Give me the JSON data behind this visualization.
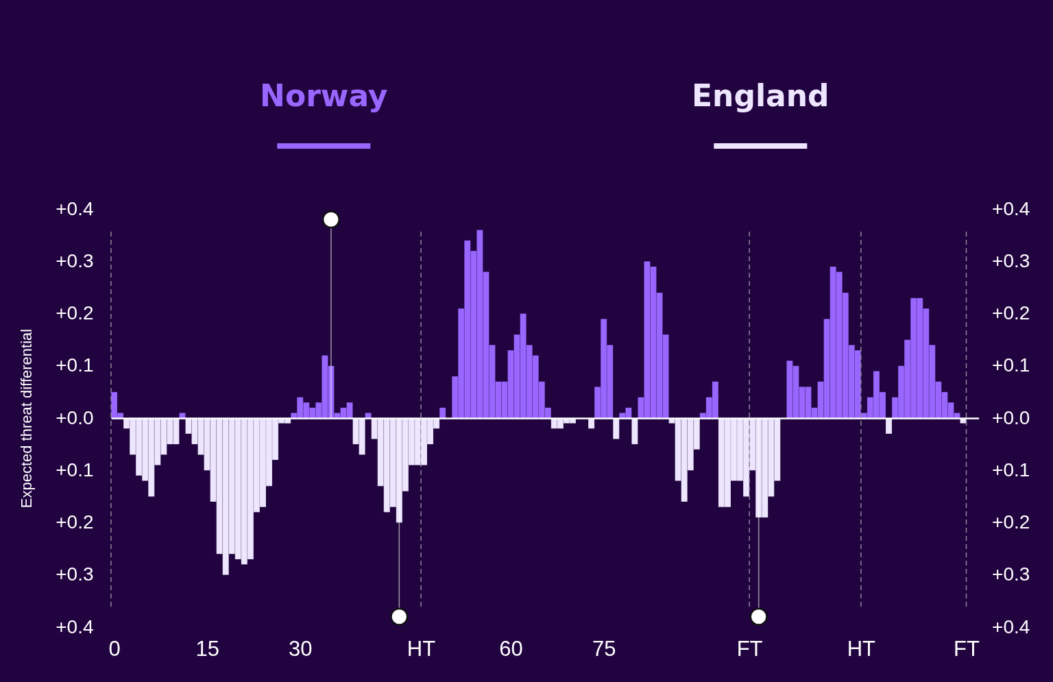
{
  "chart_data": [
    {
      "type": "bar",
      "ylabel": "Expected threat differential",
      "x": [
        0,
        1,
        2,
        3,
        4,
        5,
        6,
        7,
        8,
        9,
        10,
        11,
        12,
        13,
        14,
        15,
        16,
        17,
        18,
        19,
        20,
        21,
        22,
        23,
        24,
        25,
        26,
        27,
        28,
        29,
        30,
        31,
        32,
        33,
        34,
        35,
        36,
        37,
        38,
        39,
        40,
        41,
        42,
        43,
        44,
        45,
        46,
        47,
        48,
        49
      ],
      "series": [
        {
          "name": "Norway",
          "color": "#9966ff",
          "values": [
            0.05,
            0.01,
            null,
            null,
            null,
            null,
            null,
            null,
            null,
            null,
            null,
            0.01,
            null,
            null,
            null,
            null,
            null,
            null,
            null,
            null,
            null,
            null,
            null,
            null,
            null,
            null,
            null,
            null,
            null,
            0.01,
            0.04,
            0.03,
            0.02,
            0.03,
            0.12,
            0.1,
            0.01,
            0.02,
            0.03,
            null,
            null,
            0.01,
            null,
            null,
            null,
            null,
            null,
            null,
            null,
            null
          ]
        },
        {
          "name": "England",
          "color": "#eee6ff",
          "values": [
            null,
            null,
            -0.02,
            -0.07,
            -0.11,
            -0.12,
            -0.15,
            -0.09,
            -0.07,
            -0.05,
            -0.05,
            null,
            -0.03,
            -0.05,
            -0.07,
            -0.1,
            -0.16,
            -0.26,
            -0.3,
            -0.26,
            -0.27,
            -0.28,
            -0.27,
            -0.18,
            -0.17,
            -0.13,
            -0.08,
            -0.01,
            -0.01,
            null,
            null,
            null,
            null,
            null,
            null,
            null,
            null,
            null,
            null,
            -0.05,
            -0.07,
            null,
            -0.04,
            -0.13,
            -0.18,
            -0.17,
            -0.2,
            -0.14,
            -0.09,
            -0.09
          ]
        },
        {
          "type": "lollipop",
          "color": "#ffffff",
          "x": [
            35,
            46
          ],
          "values": [
            0.38,
            -0.38
          ]
        }
      ],
      "marker": "circle",
      "xlim": [
        -0.5,
        49.5
      ],
      "xticks": [
        0,
        15,
        30,
        {
          "value": 49.5,
          "label": "HT"
        }
      ],
      "ylim": [
        -0.4,
        0.4
      ],
      "yticks": [
        {
          "value": -0.4,
          "label": "+0.4"
        },
        {
          "value": -0.3,
          "label": "+0.3"
        },
        {
          "value": -0.2,
          "label": "+0.2"
        },
        {
          "value": -0.1,
          "label": "+0.1"
        },
        {
          "value": 0,
          "label": "+0.0"
        },
        {
          "value": 0.1,
          "label": "+0.1"
        },
        {
          "value": 0.2,
          "label": "+0.2"
        },
        {
          "value": 0.3,
          "label": "+0.3"
        },
        {
          "value": 0.4,
          "label": "+0.4"
        }
      ],
      "ref_lines": [
        {
          "axis": "x",
          "value": -0.5,
          "color": "#8f879c",
          "line_style": "dashed"
        },
        {
          "axis": "x",
          "value": 49.5,
          "color": "#8f879c",
          "line_style": "dashed"
        }
      ],
      "legend": "top"
    },
    {
      "type": "bar",
      "x": [
        46,
        47,
        48,
        49,
        50,
        51,
        52,
        53,
        54,
        55,
        56,
        57,
        58,
        59,
        60,
        61,
        62,
        63,
        64,
        65,
        66,
        67,
        68,
        69,
        70,
        71,
        72,
        73,
        74,
        75,
        76,
        77,
        78,
        79,
        80,
        81,
        82,
        83,
        84,
        85,
        86,
        87,
        88,
        89,
        90,
        91,
        92,
        93,
        94,
        95,
        96,
        97,
        98,
        99,
        100,
        101,
        102,
        103,
        104,
        105,
        106,
        107,
        108,
        109,
        110,
        111,
        112,
        113,
        114,
        115,
        116,
        117,
        118,
        119,
        120,
        121,
        122,
        123,
        124,
        125,
        126,
        127,
        128,
        129,
        130,
        131,
        132,
        133
      ],
      "series": [
        {
          "color": "#9966ff",
          "axis": "y2",
          "values": [
            null,
            null,
            null,
            0.02,
            null,
            0.08,
            0.21,
            0.34,
            0.32,
            0.36,
            0.28,
            0.14,
            0.07,
            0.07,
            0.13,
            0.16,
            0.2,
            0.14,
            0.12,
            0.07,
            0.02,
            null,
            null,
            null,
            null,
            null,
            null,
            null,
            0.06,
            0.19,
            0.14,
            null,
            0.01,
            0.02,
            null,
            0.04,
            0.3,
            0.29,
            0.24,
            0.16,
            null,
            null,
            null,
            null,
            null,
            0.01,
            0.04,
            0.07,
            null,
            null,
            null,
            null,
            null,
            null,
            null,
            null,
            null,
            null,
            null,
            0.11,
            0.1,
            0.06,
            0.06,
            0.02,
            0.07,
            0.19,
            0.29,
            0.28,
            0.24,
            0.14,
            0.13,
            0.01,
            0.04,
            0.09,
            0.05,
            null,
            0.04,
            0.1,
            0.15,
            0.23,
            0.23,
            0.21,
            0.14,
            0.07,
            0.05,
            0.03,
            0.01,
            null
          ]
        },
        {
          "color": "#eee6ff",
          "axis": "y2",
          "values": [
            -0.09,
            -0.05,
            -0.02,
            null,
            null,
            null,
            null,
            null,
            null,
            null,
            null,
            null,
            null,
            null,
            null,
            null,
            null,
            null,
            null,
            null,
            null,
            -0.02,
            -0.02,
            -0.01,
            -0.01,
            null,
            null,
            -0.02,
            null,
            null,
            null,
            -0.04,
            null,
            null,
            -0.05,
            null,
            null,
            null,
            null,
            null,
            -0.01,
            -0.12,
            -0.16,
            -0.1,
            -0.06,
            null,
            null,
            null,
            -0.17,
            -0.17,
            -0.12,
            -0.12,
            -0.15,
            -0.1,
            -0.19,
            -0.19,
            -0.15,
            -0.12,
            null,
            null,
            null,
            null,
            null,
            null,
            null,
            null,
            null,
            null,
            null,
            null,
            null,
            null,
            null,
            null,
            null,
            -0.03,
            null,
            null,
            null,
            null,
            null,
            null,
            null,
            null,
            null,
            null,
            null,
            -0.01
          ]
        },
        {
          "type": "lollipop",
          "color": "#ffffff",
          "axis": "y2",
          "x": [
            100
          ],
          "values": [
            -0.38
          ]
        }
      ],
      "marker": "circle",
      "xlim": [
        45.5,
        135.5
      ],
      "xticks": [
        60,
        75,
        {
          "value": 98.5,
          "label": "FT"
        },
        {
          "value": 116.5,
          "label": "HT"
        },
        {
          "value": 133.5,
          "label": "FT"
        }
      ],
      "y2lim": [
        -0.4,
        0.4
      ],
      "y2ticks": [
        {
          "value": -0.4,
          "label": "+0.4"
        },
        {
          "value": -0.3,
          "label": "+0.3"
        },
        {
          "value": -0.2,
          "label": "+0.2"
        },
        {
          "value": -0.1,
          "label": "+0.1"
        },
        {
          "value": 0,
          "label": "+0.0"
        },
        {
          "value": 0.1,
          "label": "+0.1"
        },
        {
          "value": 0.2,
          "label": "+0.2"
        },
        {
          "value": 0.3,
          "label": "+0.3"
        },
        {
          "value": 0.4,
          "label": "+0.4"
        }
      ],
      "ref_lines": [
        {
          "axis": "x",
          "value": 98.5,
          "color": "#8f879c",
          "line_style": "dashed"
        },
        {
          "axis": "x",
          "value": 116.5,
          "color": "#8f879c",
          "line_style": "dashed"
        },
        {
          "axis": "x",
          "value": 133.5,
          "color": "#8f879c",
          "line_style": "dashed"
        }
      ]
    }
  ]
}
